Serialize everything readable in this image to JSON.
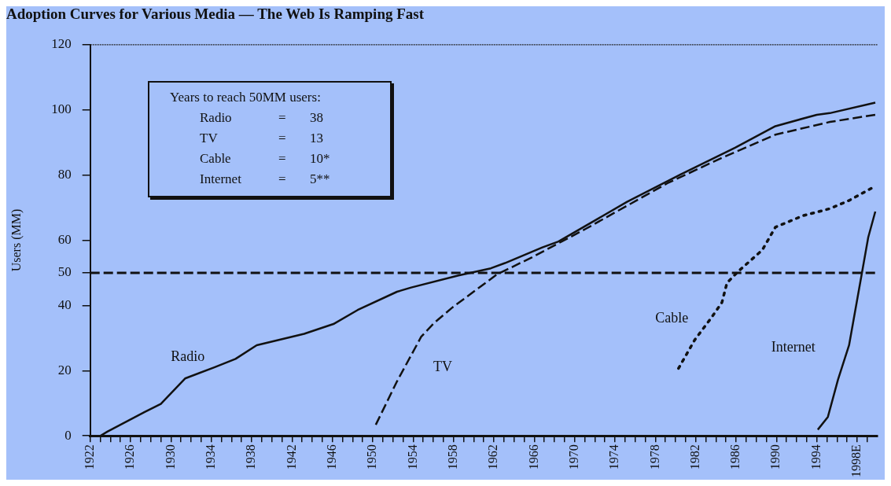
{
  "chart_data": {
    "type": "line",
    "title": "Adoption Curves for Various Media — The Web Is Ramping Fast",
    "ylabel": "Users (MM)",
    "xlim": [
      1922,
      2000
    ],
    "ylim": [
      0,
      120
    ],
    "yticks": [
      0,
      20,
      40,
      50,
      60,
      80,
      100,
      120
    ],
    "xticks": [
      1922,
      {
        "value": 1923,
        "label": null
      },
      {
        "value": 1924,
        "label": null
      },
      {
        "value": 1925,
        "label": null
      },
      1926,
      {
        "value": 1927,
        "label": null
      },
      {
        "value": 1928,
        "label": null
      },
      {
        "value": 1929,
        "label": null
      },
      1930,
      {
        "value": 1931,
        "label": null
      },
      {
        "value": 1932,
        "label": null
      },
      {
        "value": 1933,
        "label": null
      },
      1934,
      {
        "value": 1935,
        "label": null
      },
      {
        "value": 1936,
        "label": null
      },
      {
        "value": 1937,
        "label": null
      },
      1938,
      {
        "value": 1939,
        "label": null
      },
      {
        "value": 1940,
        "label": null
      },
      {
        "value": 1941,
        "label": null
      },
      1942,
      {
        "value": 1943,
        "label": null
      },
      {
        "value": 1944,
        "label": null
      },
      {
        "value": 1945,
        "label": null
      },
      1946,
      {
        "value": 1947,
        "label": null
      },
      {
        "value": 1948,
        "label": null
      },
      {
        "value": 1949,
        "label": null
      },
      1950,
      {
        "value": 1951,
        "label": null
      },
      {
        "value": 1952,
        "label": null
      },
      {
        "value": 1953,
        "label": null
      },
      1954,
      {
        "value": 1955,
        "label": null
      },
      {
        "value": 1956,
        "label": null
      },
      {
        "value": 1957,
        "label": null
      },
      1958,
      {
        "value": 1959,
        "label": null
      },
      {
        "value": 1960,
        "label": null
      },
      {
        "value": 1961,
        "label": null
      },
      1962,
      {
        "value": 1963,
        "label": null
      },
      {
        "value": 1964,
        "label": null
      },
      {
        "value": 1965,
        "label": null
      },
      1966,
      {
        "value": 1967,
        "label": null
      },
      {
        "value": 1968,
        "label": null
      },
      {
        "value": 1969,
        "label": null
      },
      1970,
      {
        "value": 1971,
        "label": null
      },
      {
        "value": 1972,
        "label": null
      },
      {
        "value": 1973,
        "label": null
      },
      1974,
      {
        "value": 1975,
        "label": null
      },
      {
        "value": 1976,
        "label": null
      },
      {
        "value": 1977,
        "label": null
      },
      1978,
      {
        "value": 1979,
        "label": null
      },
      {
        "value": 1980,
        "label": null
      },
      {
        "value": 1981,
        "label": null
      },
      1982,
      {
        "value": 1983,
        "label": null
      },
      {
        "value": 1984,
        "label": null
      },
      {
        "value": 1985,
        "label": null
      },
      1986,
      {
        "value": 1987,
        "label": null
      },
      {
        "value": 1988,
        "label": null
      },
      {
        "value": 1989,
        "label": null
      },
      1990,
      {
        "value": 1991,
        "label": null
      },
      {
        "value": 1992,
        "label": null
      },
      {
        "value": 1993,
        "label": null
      },
      1994,
      {
        "value": 1995,
        "label": null
      },
      {
        "value": 1996,
        "label": null
      },
      {
        "value": 1997,
        "label": null
      },
      {
        "value": 1998,
        "label": "1998E"
      },
      {
        "value": 1999,
        "label": null
      }
    ],
    "grid": false,
    "legend": false,
    "marker": "none",
    "ref_lines": [
      {
        "axis": "y",
        "value": 50,
        "line_style": "dashed"
      }
    ],
    "annotations": [
      "Years to reach 50MM users:",
      "Radio = 38",
      "TV = 13",
      "Cable = 10*",
      "Internet = 5**"
    ],
    "series": [
      {
        "name": "Radio",
        "color": "#111111",
        "line_style": "solid",
        "x": [
          1923,
          1923.7,
          1927.4,
          1929,
          1931.4,
          1934.3,
          1936.4,
          1938.5,
          1943.2,
          1946.1,
          1948.5,
          1952.4,
          1953.8,
          1958.5,
          1961.7,
          1963.1,
          1966.8,
          1968.4,
          1975.2,
          1980.5,
          1985.9,
          1989.9,
          1994,
          1995.3,
          1999.8
        ],
        "values": [
          0,
          1.3,
          7.3,
          9.8,
          17.6,
          21,
          23.6,
          27.8,
          31.3,
          34.3,
          38.6,
          44.2,
          45.5,
          49.2,
          51.4,
          53,
          57.8,
          59.6,
          71.8,
          80.2,
          88.4,
          95,
          98.5,
          99,
          102.2
        ]
      },
      {
        "name": "TV",
        "color": "#111111",
        "line_style": "dashed",
        "x": [
          1950.3,
          1952.4,
          1954.8,
          1956.1,
          1957.9,
          1962.3,
          1965.8,
          1971.1,
          1979.2,
          1984.6,
          1989.9,
          1995.3,
          1999.8
        ],
        "values": [
          3.4,
          16.7,
          30.4,
          34.7,
          39.4,
          49.5,
          54.8,
          63.5,
          77.5,
          85.3,
          92.4,
          96.3,
          98.5
        ]
      },
      {
        "name": "Cable",
        "color": "#111111",
        "line_style": "dotted",
        "x": [
          1980.3,
          1981.9,
          1983.5,
          1984.6,
          1985.1,
          1986.2,
          1988.6,
          1989.9,
          1992.6,
          1995.3,
          1997.2,
          1999.8
        ],
        "values": [
          20.7,
          29.4,
          36,
          40.9,
          46.9,
          50.4,
          57,
          64,
          67.5,
          69.7,
          72.2,
          76.6
        ]
      },
      {
        "name": "Internet",
        "color": "#111111",
        "line_style": "solid",
        "x": [
          1994.1,
          1995.1,
          1996.1,
          1997.2,
          1998.5,
          1999.1,
          1999.8
        ],
        "values": [
          1.9,
          5.8,
          17.2,
          27.8,
          50.4,
          60.9,
          68.8
        ]
      }
    ]
  }
}
